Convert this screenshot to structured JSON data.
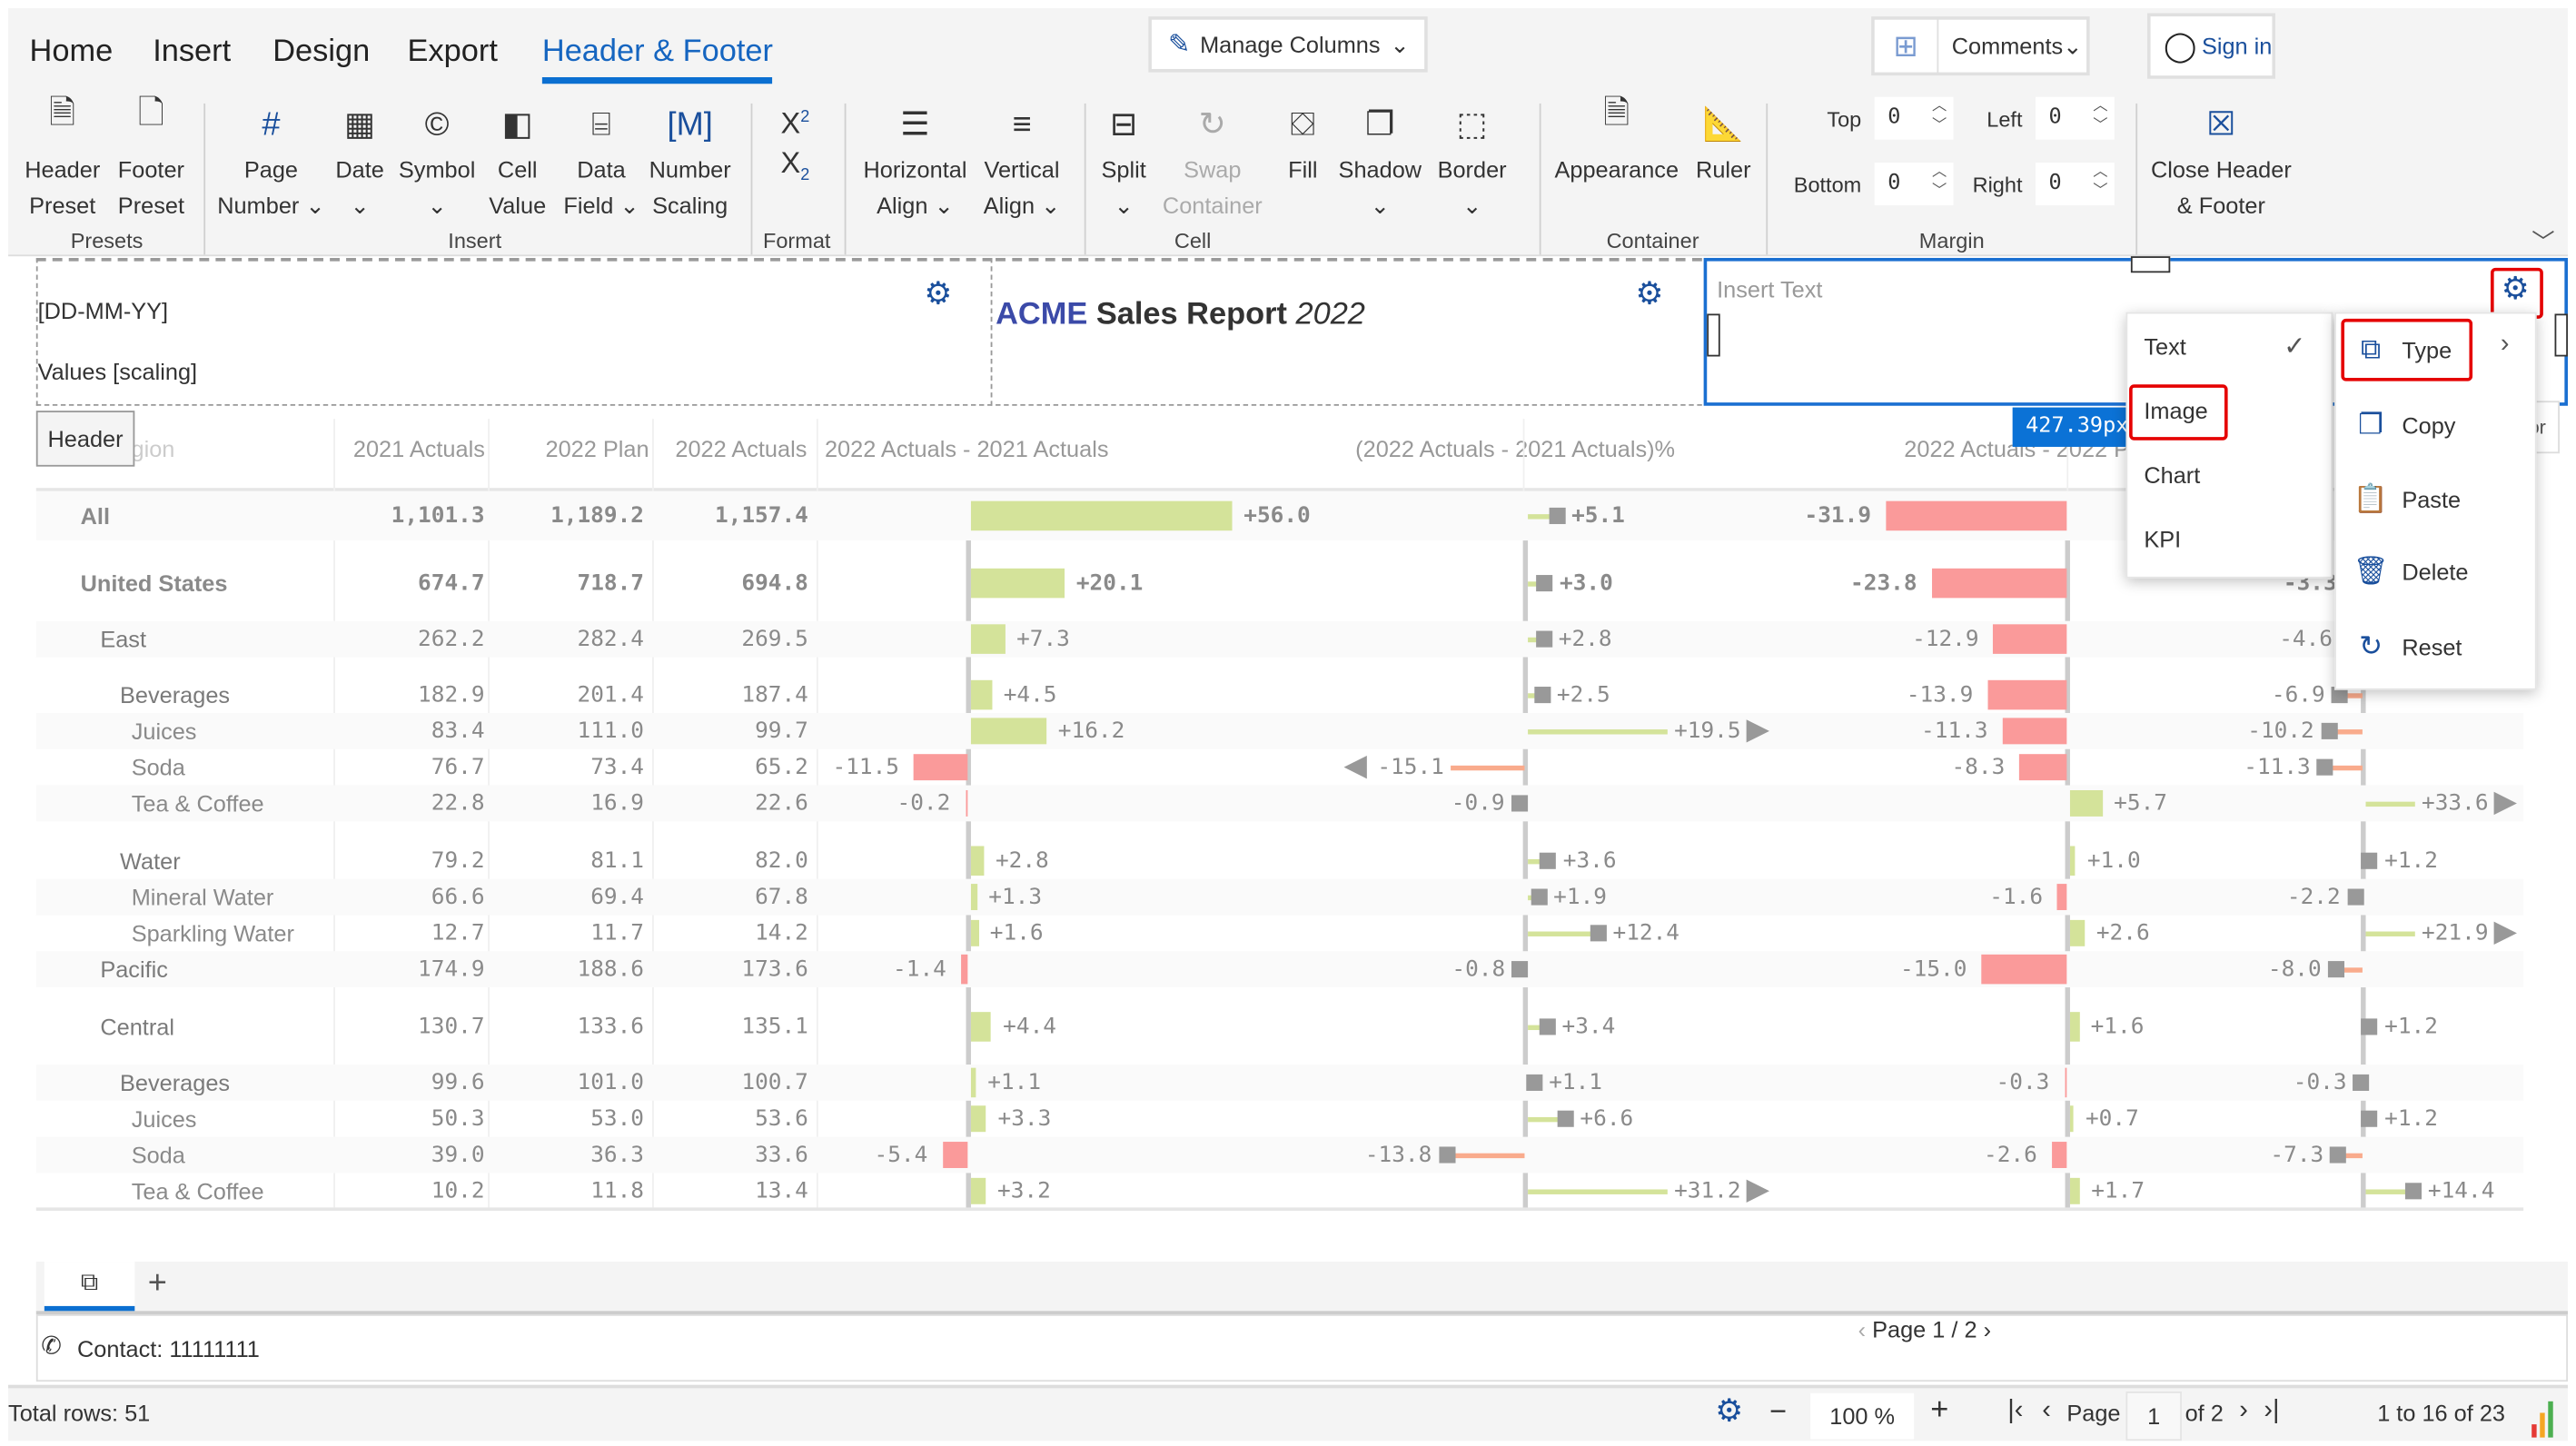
{
  "tabs": [
    {
      "label": "Home",
      "active": false
    },
    {
      "label": "Insert",
      "active": false
    },
    {
      "label": "Design",
      "active": false
    },
    {
      "label": "Export",
      "active": false
    },
    {
      "label": "Header & Footer",
      "active": true
    }
  ],
  "top_buttons": {
    "manage_columns": "Manage Columns",
    "comments": "Comments",
    "sign_in": "Sign in"
  },
  "ribbon": {
    "buttons": [
      {
        "id": "header-preset",
        "icon": "header-preset-icon",
        "lines": [
          "Header",
          "Preset"
        ]
      },
      {
        "id": "footer-preset",
        "icon": "footer-preset-icon",
        "lines": [
          "Footer",
          "Preset"
        ]
      },
      {
        "id": "page-number",
        "icon": "hash-icon",
        "lines": [
          "Page",
          "Number ⌄"
        ]
      },
      {
        "id": "date",
        "icon": "calendar-icon",
        "lines": [
          "Date",
          "⌄"
        ]
      },
      {
        "id": "symbol",
        "icon": "copyright-icon",
        "lines": [
          "Symbol",
          "⌄"
        ]
      },
      {
        "id": "cell-value",
        "icon": "cell-value-icon",
        "lines": [
          "Cell",
          "Value"
        ]
      },
      {
        "id": "data-field",
        "icon": "data-field-icon",
        "lines": [
          "Data",
          "Field ⌄"
        ]
      },
      {
        "id": "number-scaling",
        "icon": "number-scaling-icon",
        "lines": [
          "Number",
          "Scaling"
        ]
      },
      {
        "id": "superscript",
        "icon": "superscript-icon",
        "lines": [
          "",
          ""
        ]
      },
      {
        "id": "horizontal-align",
        "icon": "align-horizontal-icon",
        "lines": [
          "Horizontal",
          "Align ⌄"
        ]
      },
      {
        "id": "vertical-align",
        "icon": "align-vertical-icon",
        "lines": [
          "Vertical",
          "Align ⌄"
        ]
      },
      {
        "id": "split",
        "icon": "split-icon",
        "lines": [
          "Split",
          "⌄"
        ]
      },
      {
        "id": "swap-container",
        "icon": "swap-icon",
        "lines": [
          "Swap",
          "Container"
        ],
        "disabled": true
      },
      {
        "id": "fill",
        "icon": "fill-bucket-icon",
        "lines": [
          "Fill",
          ""
        ]
      },
      {
        "id": "shadow",
        "icon": "shadow-icon",
        "lines": [
          "Shadow",
          "⌄"
        ]
      },
      {
        "id": "border",
        "icon": "border-icon",
        "lines": [
          "Border",
          "⌄"
        ]
      },
      {
        "id": "appearance",
        "icon": "appearance-icon",
        "lines": [
          "Appearance",
          ""
        ]
      },
      {
        "id": "ruler",
        "icon": "ruler-icon",
        "lines": [
          "Ruler",
          ""
        ]
      },
      {
        "id": "close-header-footer",
        "icon": "close-box-icon",
        "lines": [
          "Close Header",
          "& Footer"
        ]
      }
    ],
    "groups": [
      "Presets",
      "Insert",
      "Format",
      "Cell",
      "Container",
      "Margin"
    ],
    "margin": {
      "top_label": "Top",
      "top": "0",
      "left_label": "Left",
      "left": "0",
      "bottom_label": "Bottom",
      "bottom": "0",
      "right_label": "Right",
      "right": "0"
    }
  },
  "header_band": {
    "left_line1": "[DD-MM-YY]",
    "left_line2": "Values [scaling]",
    "center_brand": "ACME",
    "center_title": " Sales Report ",
    "center_year": "2022",
    "right_placeholder": "Insert Text",
    "header_tag": "Header",
    "width_badge": "427.39px"
  },
  "type_menu": {
    "items": [
      "Text",
      "Image",
      "Chart",
      "KPI"
    ],
    "checked": "Text",
    "highlighted": "Image"
  },
  "context_menu": {
    "items": [
      {
        "label": "Type",
        "icon": "type-icon"
      },
      {
        "label": "Copy",
        "icon": "copy-icon"
      },
      {
        "label": "Paste",
        "icon": "paste-icon"
      },
      {
        "label": "Delete",
        "icon": "trash-icon"
      },
      {
        "label": "Reset",
        "icon": "reset-icon"
      }
    ]
  },
  "table": {
    "columns": [
      "Region",
      "2021 Actuals",
      "2022 Plan",
      "2022 Actuals",
      "2022 Actuals - 2021 Actuals",
      "(2022 Actuals - 2021 Actuals)%",
      "2022 Actuals - 2022 Plan"
    ],
    "colors": {
      "positive": "#d4e39a",
      "negative": "#fa9a9a",
      "pin": "#999999",
      "neg_line": "#f9ab8c"
    },
    "rows": [
      {
        "name": "All",
        "level": 0,
        "a21": "1,101.3",
        "p22": "1,189.2",
        "a22": "1,157.4",
        "d1": 56.0,
        "p1": 5.1,
        "d2": -31.9,
        "p2": null
      },
      {
        "name": "United States",
        "level": 0,
        "a21": "674.7",
        "p22": "718.7",
        "a22": "694.8",
        "d1": 20.1,
        "p1": 3.0,
        "d2": -23.8,
        "p2": -3.3
      },
      {
        "name": "East",
        "level": 1,
        "a21": "262.2",
        "p22": "282.4",
        "a22": "269.5",
        "d1": 7.3,
        "p1": 2.8,
        "d2": -12.9,
        "p2": -4.6
      },
      {
        "name": "Beverages",
        "level": 2,
        "a21": "182.9",
        "p22": "201.4",
        "a22": "187.4",
        "d1": 4.5,
        "p1": 2.5,
        "d2": -13.9,
        "p2": -6.9
      },
      {
        "name": "Juices",
        "level": 3,
        "a21": "83.4",
        "p22": "111.0",
        "a22": "99.7",
        "d1": 16.2,
        "p1": 19.5,
        "d2": -11.3,
        "p2": -10.2
      },
      {
        "name": "Soda",
        "level": 3,
        "a21": "76.7",
        "p22": "73.4",
        "a22": "65.2",
        "d1": -11.5,
        "p1": -15.1,
        "d2": -8.3,
        "p2": -11.3
      },
      {
        "name": "Tea & Coffee",
        "level": 3,
        "a21": "22.8",
        "p22": "16.9",
        "a22": "22.6",
        "d1": -0.2,
        "p1": -0.9,
        "d2": 5.7,
        "p2": 33.6
      },
      {
        "name": "Water",
        "level": 2,
        "a21": "79.2",
        "p22": "81.1",
        "a22": "82.0",
        "d1": 2.8,
        "p1": 3.6,
        "d2": 1.0,
        "p2": 1.2
      },
      {
        "name": "Mineral Water",
        "level": 3,
        "a21": "66.6",
        "p22": "69.4",
        "a22": "67.8",
        "d1": 1.3,
        "p1": 1.9,
        "d2": -1.6,
        "p2": -2.2
      },
      {
        "name": "Sparkling Water",
        "level": 3,
        "a21": "12.7",
        "p22": "11.7",
        "a22": "14.2",
        "d1": 1.6,
        "p1": 12.4,
        "d2": 2.6,
        "p2": 21.9
      },
      {
        "name": "Pacific",
        "level": 1,
        "a21": "174.9",
        "p22": "188.6",
        "a22": "173.6",
        "d1": -1.4,
        "p1": -0.8,
        "d2": -15.0,
        "p2": -8.0
      },
      {
        "name": "Central",
        "level": 1,
        "a21": "130.7",
        "p22": "133.6",
        "a22": "135.1",
        "d1": 4.4,
        "p1": 3.4,
        "d2": 1.6,
        "p2": 1.2
      },
      {
        "name": "Beverages",
        "level": 2,
        "a21": "99.6",
        "p22": "101.0",
        "a22": "100.7",
        "d1": 1.1,
        "p1": 1.1,
        "d2": -0.3,
        "p2": -0.3
      },
      {
        "name": "Juices",
        "level": 3,
        "a21": "50.3",
        "p22": "53.0",
        "a22": "53.6",
        "d1": 3.3,
        "p1": 6.6,
        "d2": 0.7,
        "p2": 1.2
      },
      {
        "name": "Soda",
        "level": 3,
        "a21": "39.0",
        "p22": "36.3",
        "a22": "33.6",
        "d1": -5.4,
        "p1": -13.8,
        "d2": -2.6,
        "p2": -7.3
      },
      {
        "name": "Tea & Coffee",
        "level": 3,
        "a21": "10.2",
        "p22": "11.8",
        "a22": "13.4",
        "d1": 3.2,
        "p1": 31.2,
        "d2": 1.7,
        "p2": 14.4
      }
    ]
  },
  "footer": {
    "contact": "Contact: 11111111",
    "page_indicator": "Page 1 / 2"
  },
  "status_bar": {
    "total_rows": "Total rows: 51",
    "zoom": "100 %",
    "page_label": "Page",
    "page_value": "1",
    "page_of": "of 2",
    "range": "1 to 16 of 23"
  }
}
